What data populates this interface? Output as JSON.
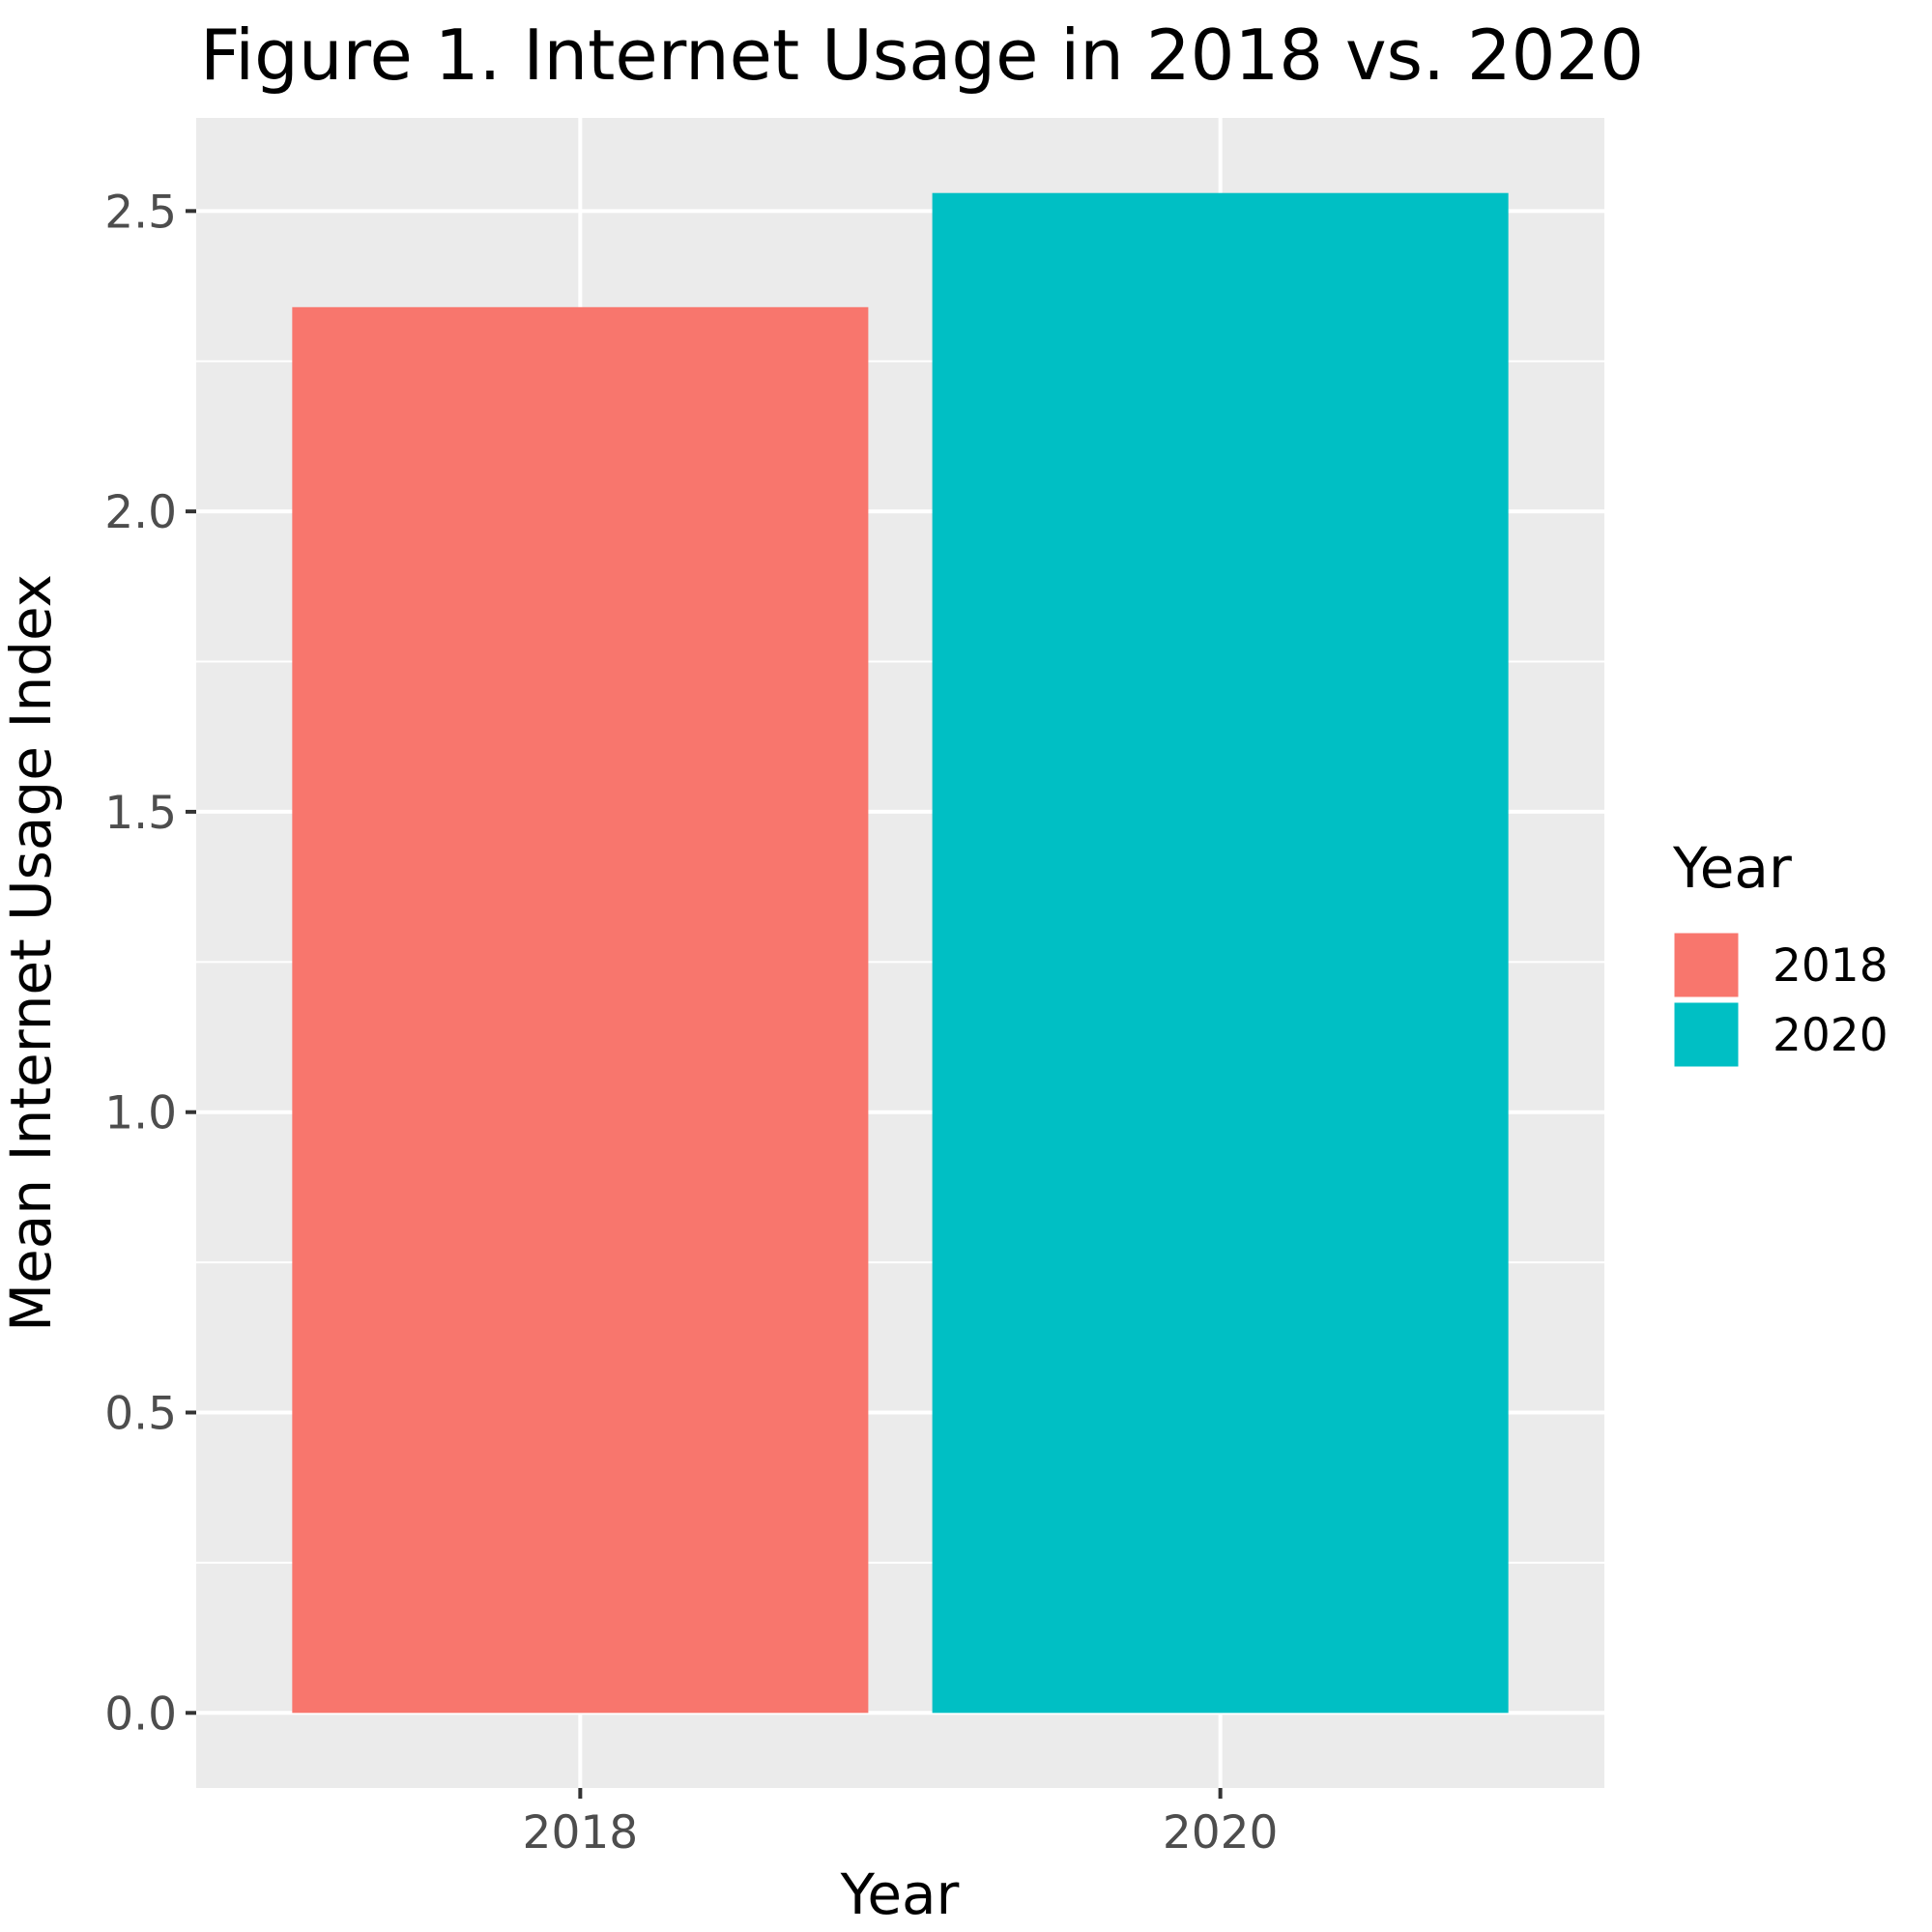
{
  "chart_data": {
    "type": "bar",
    "title": "Figure 1. Internet Usage in 2018 vs. 2020",
    "xlabel": "Year",
    "ylabel": "Mean Internet Usage Index",
    "categories": [
      "2018",
      "2020"
    ],
    "values": [
      2.34,
      2.53
    ],
    "colors": [
      "#F8766D",
      "#00BFC4"
    ],
    "ylim": [
      -0.125,
      2.655
    ],
    "yticks": [
      0.0,
      0.5,
      1.0,
      1.5,
      2.0,
      2.5
    ],
    "ytick_labels": [
      "0.0",
      "0.5",
      "1.0",
      "1.5",
      "2.0",
      "2.5"
    ],
    "grid": true,
    "panel_background": "#EBEBEB",
    "legend": {
      "title": "Year",
      "position": "right",
      "entries": [
        "2018",
        "2020"
      ]
    }
  }
}
